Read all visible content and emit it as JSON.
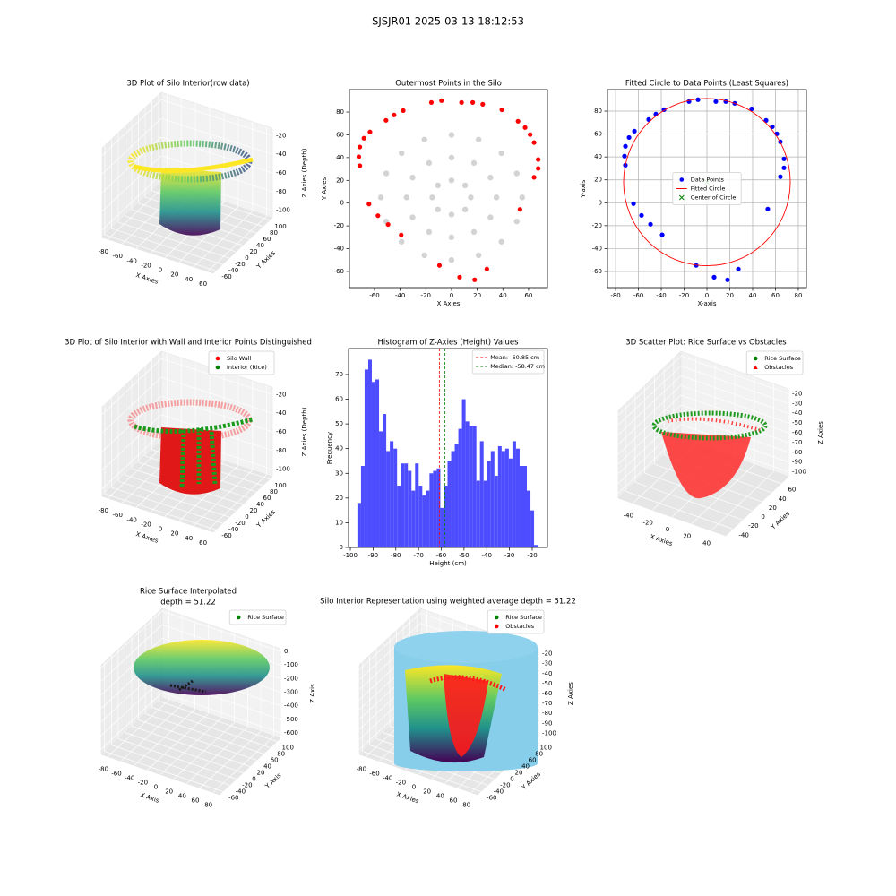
{
  "suptitle": "SJSJR01 2025-03-13 18:12:53",
  "chart_data": [
    {
      "type": "scatter3d",
      "title": "3D Plot of Silo Interior(row data)",
      "xlabel": "X Axies",
      "ylabel": "Y Axies",
      "zlabel": "Z Axies (Depth)",
      "xlim": [
        -88,
        68
      ],
      "ylim": [
        -68,
        108
      ],
      "zlim": [
        -108,
        -12
      ],
      "xticks": [
        -80,
        -60,
        -40,
        -20,
        0,
        20,
        40,
        60
      ],
      "yticks": [
        -60,
        -40,
        -20,
        0,
        20,
        40,
        60,
        80,
        100
      ],
      "zticks": [
        -100,
        -80,
        -60,
        -40,
        -20
      ]
    },
    {
      "type": "scatter",
      "title": "Outermost Points in the Silo",
      "xlabel": "X Axies",
      "ylabel": "Y Axies",
      "xlim": [
        -79.5,
        74.7
      ],
      "ylim": [
        -74.2,
        99.7
      ],
      "xticks": [
        -60,
        -40,
        -20,
        0,
        20,
        40,
        60
      ],
      "yticks": [
        -60,
        -40,
        -20,
        0,
        20,
        40,
        60,
        80
      ],
      "grid": false,
      "series": [
        {
          "color": "#d3d3d3",
          "x": [
            15,
            10.6,
            0,
            -10.6,
            -15,
            -10.6,
            0,
            10.6,
            35,
            30.3,
            17.5,
            0,
            -17.5,
            -30.3,
            -35,
            -30.3,
            -17.5,
            0,
            17.5,
            30.3,
            55,
            50.8,
            38.9,
            21.1,
            0,
            -21.1,
            -38.9,
            -50.8,
            -55,
            -50.8,
            -38.9,
            -21.1,
            0,
            21.1,
            38.9,
            50.8
          ],
          "y": [
            5,
            15.6,
            20,
            15.6,
            5,
            -5.6,
            -10,
            -5.6,
            5,
            22.5,
            35.3,
            40,
            35.3,
            22.5,
            5,
            -12.5,
            -25.3,
            -30,
            -25.3,
            -12.5,
            5,
            26.1,
            43.9,
            55.8,
            60,
            55.8,
            43.9,
            26.1,
            5,
            -16.1,
            -33.9,
            -45.8,
            -50,
            -45.8,
            -33.9,
            -16.1
          ]
        },
        {
          "color": "red",
          "x": [
            -72.2,
            -71.4,
            -71.4,
            -68.2,
            -63.5,
            -64.3,
            -57.3,
            -51.0,
            -44.7,
            -37.6,
            -49.4,
            -39.2,
            -15.7,
            -7.8,
            -9.4,
            7.8,
            16.5,
            24.3,
            6.3,
            18.0,
            27.5,
            39.2,
            51.8,
            53.3,
            57.3,
            61.2,
            64.3,
            67.5,
            67.5,
            64.3
          ],
          "y": [
            40.7,
            49.3,
            32.8,
            57.0,
            62.5,
            -0.8,
            -11.0,
            72.7,
            77.4,
            81.3,
            -18.8,
            -28.0,
            88.4,
            90.0,
            -54.7,
            88.4,
            88.4,
            86.8,
            -65.0,
            -67.3,
            -57.9,
            82.0,
            71.9,
            -5.5,
            66.4,
            60.2,
            53.2,
            38.3,
            30.5,
            22.7
          ]
        }
      ]
    },
    {
      "type": "scatter",
      "title": "Fitted Circle to Data Points (Least Squares)",
      "xlabel": "X-axis",
      "ylabel": "Y-axis",
      "xlim": [
        -87.1,
        87.1
      ],
      "ylim": [
        -74.1,
        98.8
      ],
      "xticks": [
        -80,
        -60,
        -40,
        -20,
        0,
        20,
        40,
        60,
        80
      ],
      "yticks": [
        -60,
        -40,
        -20,
        0,
        20,
        40,
        60,
        80
      ],
      "grid": true,
      "legend": "center",
      "series": [
        {
          "name": "Data Points",
          "color": "blue",
          "x": [
            -72.2,
            -71.4,
            -71.4,
            -68.2,
            -63.5,
            -64.3,
            -57.3,
            -51.0,
            -44.7,
            -37.6,
            -49.4,
            -39.2,
            -15.7,
            -7.8,
            -9.4,
            7.8,
            16.5,
            24.3,
            6.3,
            18.0,
            27.5,
            39.2,
            51.8,
            53.3,
            57.3,
            61.2,
            64.3,
            67.5,
            67.5,
            64.3
          ],
          "y": [
            40.7,
            49.3,
            32.8,
            57.0,
            62.5,
            -0.8,
            -11.0,
            72.7,
            77.4,
            81.3,
            -18.8,
            -28.0,
            88.4,
            90.0,
            -54.7,
            88.4,
            88.4,
            86.8,
            -65.0,
            -67.3,
            -57.9,
            82.0,
            71.9,
            -5.5,
            66.4,
            60.2,
            53.2,
            38.3,
            30.5,
            22.7
          ]
        }
      ],
      "circle": {
        "name": "Fitted Circle",
        "color": "red",
        "center": [
          0,
          18
        ],
        "radius": 73,
        "center_name": "Center of Circle",
        "center_color": "green"
      }
    },
    {
      "type": "scatter3d",
      "title": "3D Plot of Silo Interior with Wall and Interior Points Distinguished",
      "xlabel": "X Axies",
      "ylabel": "Y Axies",
      "zlabel": "Z Axies (Depth)",
      "xlim": [
        -88,
        68
      ],
      "ylim": [
        -68,
        108
      ],
      "zlim": [
        -108,
        -12
      ],
      "xticks": [
        -80,
        -60,
        -40,
        -20,
        0,
        20,
        40,
        60
      ],
      "yticks": [
        -60,
        -40,
        -20,
        0,
        20,
        40,
        60,
        80,
        100
      ],
      "zticks": [
        -100,
        -80,
        -60,
        -40,
        -20
      ],
      "legend": "upper right",
      "series": [
        {
          "name": "Silo Wall",
          "color": "red",
          "marker": "o"
        },
        {
          "name": "Interior (Rice)",
          "color": "green",
          "marker": "o"
        }
      ]
    },
    {
      "type": "histogram",
      "title": "Histogram of Z-Axies (Height) Values",
      "xlabel": "Height (cm)",
      "ylabel": "Frequency",
      "color": "#4d4dff",
      "bins": [
        -96.9,
        -95.31,
        -93.73,
        -92.14,
        -90.56,
        -88.97,
        -87.38,
        -85.8,
        -84.21,
        -82.63,
        -81.04,
        -79.45,
        -77.87,
        -76.28,
        -74.7,
        -73.11,
        -71.52,
        -69.94,
        -68.35,
        -66.77,
        -65.18,
        -63.59,
        -62.01,
        -60.42,
        -58.84,
        -57.25,
        -55.66,
        -54.08,
        -52.49,
        -50.91,
        -49.32,
        -47.73,
        -46.15,
        -44.56,
        -42.98,
        -41.39,
        -39.8,
        -38.22,
        -36.63,
        -35.05,
        -33.46,
        -31.87,
        -30.29,
        -28.7,
        -27.12,
        -25.53,
        -23.94,
        -22.36,
        -20.77,
        -19.19,
        -17.6
      ],
      "values": [
        18,
        33,
        72,
        76,
        67,
        68,
        47,
        54,
        39,
        43,
        40,
        25,
        34,
        34,
        31,
        23,
        34,
        25,
        21,
        23,
        30,
        31,
        32,
        16,
        25,
        35,
        39,
        42,
        48,
        60,
        51,
        49,
        49,
        27,
        43,
        27,
        35,
        39,
        29,
        41,
        39,
        40,
        36,
        43,
        40,
        33,
        33,
        23,
        15,
        1
      ],
      "xlim": [
        -100.8,
        -13.3
      ],
      "ylim": [
        0,
        80.5
      ],
      "xticks": [
        -100,
        -90,
        -80,
        -70,
        -60,
        -50,
        -40,
        -30,
        -20
      ],
      "yticks": [
        0,
        10,
        20,
        30,
        40,
        50,
        60,
        70
      ],
      "lines": [
        {
          "label": "Mean: -60.85 cm",
          "value": -60.85,
          "color": "red"
        },
        {
          "label": "Median: -58.47 cm",
          "value": -58.47,
          "color": "green"
        }
      ],
      "legend": "upper right"
    },
    {
      "type": "scatter3d",
      "title": "3D Scatter Plot: Rice Surface vs Obstacles",
      "xlabel": "X Axies",
      "ylabel": "Y Axies",
      "zlabel": "Z Axies",
      "xlim": [
        -55,
        55
      ],
      "ylim": [
        -55,
        75
      ],
      "zlim": [
        -105,
        -15
      ],
      "xticks": [
        -40,
        -20,
        0,
        20,
        40
      ],
      "yticks": [
        -40,
        -20,
        0,
        20,
        40,
        60
      ],
      "zticks": [
        -100,
        -90,
        -80,
        -70,
        -60,
        -50,
        -40,
        -30,
        -20
      ],
      "legend": "upper right",
      "series": [
        {
          "name": "Rice Surface",
          "color": "green",
          "marker": "o"
        },
        {
          "name": "Obstacles",
          "color": "red",
          "marker": "^"
        }
      ]
    },
    {
      "type": "surface3d",
      "title": [
        "Rice Surface Interpolated",
        "depth = 51.22"
      ],
      "xlabel": "X Axis",
      "ylabel": "Y Axis",
      "zlabel": "Z Axis",
      "xlim": [
        -90,
        90
      ],
      "ylim": [
        -70,
        110
      ],
      "zlim": [
        -640,
        20
      ],
      "xticks": [
        -80,
        -60,
        -40,
        -20,
        0,
        20,
        40,
        60,
        80
      ],
      "yticks": [
        -60,
        -40,
        -20,
        0,
        20,
        40,
        60,
        80,
        100
      ],
      "zticks": [
        -600,
        -500,
        -400,
        -300,
        -200,
        -100,
        0
      ],
      "legend": "upper right",
      "series": [
        {
          "name": "Rice Surface",
          "color": "green",
          "marker": "o"
        }
      ]
    },
    {
      "type": "surface3d",
      "title": "Silo Interior Representation using weighted average depth = 51.22",
      "xlabel": "X Axies",
      "ylabel": "Y Axies",
      "zlabel": "Z Axies",
      "xlim": [
        -90,
        90
      ],
      "ylim": [
        -70,
        110
      ],
      "zlim": [
        -105,
        -15
      ],
      "xticks": [
        -80,
        -60,
        -40,
        -20,
        0,
        20,
        40,
        60,
        80
      ],
      "yticks": [
        -60,
        -40,
        -20,
        0,
        20,
        40,
        60,
        80,
        100
      ],
      "zticks": [
        -100,
        -90,
        -80,
        -70,
        -60,
        -50,
        -40,
        -30,
        -20
      ],
      "legend": "upper right",
      "series": [
        {
          "name": "Rice Surface",
          "color": "green",
          "marker": "o"
        },
        {
          "name": "Obstacles",
          "color": "red",
          "marker": "o"
        }
      ]
    }
  ]
}
